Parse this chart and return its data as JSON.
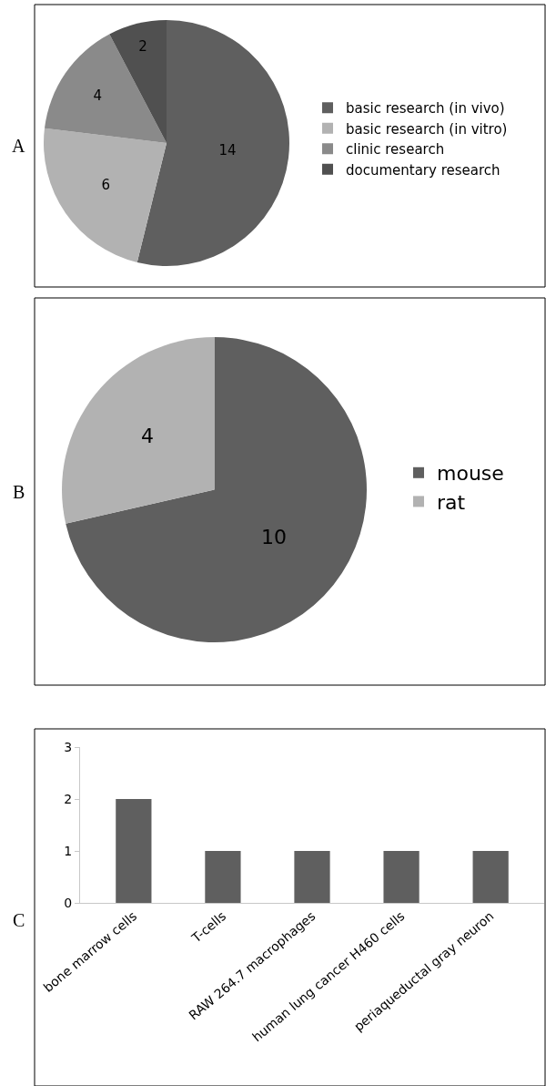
{
  "chart_data": [
    {
      "type": "pie",
      "annotations": [
        "A"
      ],
      "categories": [
        "basic research (in vivo)",
        "basic research (in vitro)",
        "clinic research",
        "documentary research"
      ],
      "values": [
        14,
        6,
        4,
        2
      ],
      "colors": [
        "#5f5f5f",
        "#b2b2b2",
        "#8a8a8a",
        "#505050"
      ],
      "data_labels": true,
      "legend": "right"
    },
    {
      "type": "pie",
      "annotations": [
        "B"
      ],
      "categories": [
        "mouse",
        "rat"
      ],
      "values": [
        10,
        4
      ],
      "colors": [
        "#5f5f5f",
        "#b2b2b2"
      ],
      "data_labels": true,
      "legend": "right"
    },
    {
      "type": "bar",
      "annotations": [
        "C"
      ],
      "categories": [
        "bone marrow cells",
        "T-cells",
        "RAW 264.7 macrophages",
        "human lung cancer H460 cells",
        "periaqueductal gray neuron"
      ],
      "values": [
        2,
        1,
        1,
        1,
        1
      ],
      "color": "#5f5f5f",
      "ylim": [
        0,
        3
      ],
      "yticks": [
        0,
        1,
        2,
        3
      ],
      "grid": false,
      "legend": false
    }
  ]
}
